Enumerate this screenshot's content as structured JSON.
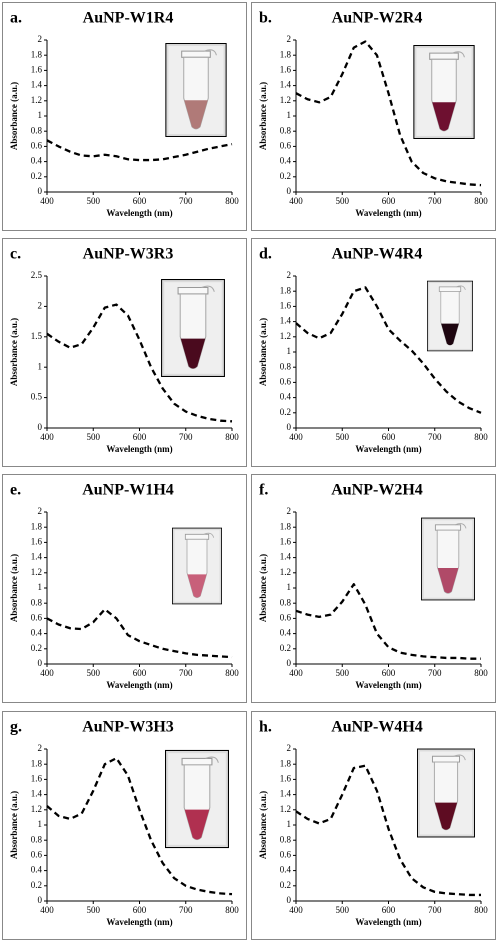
{
  "chart_data": [
    {
      "type": "line",
      "label": "a.",
      "title": "AuNP-W1R4",
      "x_label": "Wavelength (nm)",
      "y_label": "Absorbance (a.u.)",
      "x": [
        400,
        425,
        450,
        475,
        500,
        525,
        550,
        575,
        600,
        625,
        650,
        675,
        700,
        725,
        750,
        775,
        800
      ],
      "series": [
        {
          "color": "#000000",
          "values": [
            0.68,
            0.6,
            0.53,
            0.48,
            0.47,
            0.49,
            0.47,
            0.43,
            0.42,
            0.42,
            0.43,
            0.46,
            0.49,
            0.53,
            0.57,
            0.6,
            0.63
          ]
        }
      ],
      "xlim": [
        400,
        800
      ],
      "xticks": [
        400,
        500,
        600,
        700,
        800
      ],
      "ylim": [
        0,
        2
      ],
      "yticks": [
        0,
        0.2,
        0.4,
        0.6,
        0.8,
        1,
        1.2,
        1.4,
        1.6,
        1.8,
        2
      ]
    },
    {
      "type": "line",
      "label": "b.",
      "title": "AuNP-W2R4",
      "x_label": "Wavelength (nm)",
      "y_label": "Absorbance (a.u.)",
      "x": [
        400,
        425,
        450,
        475,
        500,
        525,
        550,
        575,
        600,
        625,
        650,
        675,
        700,
        725,
        750,
        775,
        800
      ],
      "series": [
        {
          "color": "#000000",
          "values": [
            1.3,
            1.22,
            1.18,
            1.25,
            1.55,
            1.9,
            1.98,
            1.8,
            1.3,
            0.75,
            0.4,
            0.25,
            0.18,
            0.14,
            0.12,
            0.1,
            0.09
          ]
        }
      ],
      "xlim": [
        400,
        800
      ],
      "xticks": [
        400,
        500,
        600,
        700,
        800
      ],
      "ylim": [
        0,
        2
      ],
      "yticks": [
        0,
        0.2,
        0.4,
        0.6,
        0.8,
        1,
        1.2,
        1.4,
        1.6,
        1.8,
        2
      ]
    },
    {
      "type": "line",
      "label": "c.",
      "title": "AuNP-W3R3",
      "x_label": "Wavelength (nm)",
      "y_label": "Absorbance (a.u.)",
      "x": [
        400,
        425,
        450,
        475,
        500,
        525,
        550,
        575,
        600,
        625,
        650,
        675,
        700,
        725,
        750,
        775,
        800
      ],
      "series": [
        {
          "color": "#000000",
          "values": [
            1.55,
            1.42,
            1.32,
            1.38,
            1.65,
            1.98,
            2.03,
            1.85,
            1.45,
            1.0,
            0.65,
            0.4,
            0.27,
            0.2,
            0.15,
            0.12,
            0.11
          ]
        }
      ],
      "xlim": [
        400,
        800
      ],
      "xticks": [
        400,
        500,
        600,
        700,
        800
      ],
      "ylim": [
        0,
        2.5
      ],
      "yticks": [
        0,
        0.5,
        1,
        1.5,
        2,
        2.5
      ]
    },
    {
      "type": "line",
      "label": "d.",
      "title": "AuNP-W4R4",
      "x_label": "Wavelength (nm)",
      "y_label": "Absorbance (a.u.)",
      "x": [
        400,
        425,
        450,
        475,
        500,
        525,
        550,
        575,
        600,
        625,
        650,
        675,
        700,
        725,
        750,
        775,
        800
      ],
      "series": [
        {
          "color": "#000000",
          "values": [
            1.38,
            1.25,
            1.18,
            1.25,
            1.5,
            1.8,
            1.85,
            1.6,
            1.3,
            1.15,
            1.02,
            0.85,
            0.65,
            0.48,
            0.35,
            0.26,
            0.2
          ]
        }
      ],
      "xlim": [
        400,
        800
      ],
      "xticks": [
        400,
        500,
        600,
        700,
        800
      ],
      "ylim": [
        0,
        2
      ],
      "yticks": [
        0,
        0.2,
        0.4,
        0.6,
        0.8,
        1,
        1.2,
        1.4,
        1.6,
        1.8,
        2
      ]
    },
    {
      "type": "line",
      "label": "e.",
      "title": "AuNP-W1H4",
      "x_label": "Wavelength (nm)",
      "y_label": "Absorbance (a.u.)",
      "x": [
        400,
        425,
        450,
        475,
        500,
        525,
        550,
        575,
        600,
        625,
        650,
        675,
        700,
        725,
        750,
        775,
        800
      ],
      "series": [
        {
          "color": "#000000",
          "values": [
            0.6,
            0.52,
            0.47,
            0.46,
            0.55,
            0.72,
            0.6,
            0.38,
            0.3,
            0.25,
            0.2,
            0.17,
            0.14,
            0.12,
            0.11,
            0.1,
            0.09
          ]
        }
      ],
      "xlim": [
        400,
        800
      ],
      "xticks": [
        400,
        500,
        600,
        700,
        800
      ],
      "ylim": [
        0,
        2
      ],
      "yticks": [
        0,
        0.2,
        0.4,
        0.6,
        0.8,
        1,
        1.2,
        1.4,
        1.6,
        1.8,
        2
      ]
    },
    {
      "type": "line",
      "label": "f.",
      "title": "AuNP-W2H4",
      "x_label": "Wavelength (nm)",
      "y_label": "Absorbance (a.u.)",
      "x": [
        400,
        425,
        450,
        475,
        500,
        525,
        550,
        575,
        600,
        625,
        650,
        675,
        700,
        725,
        750,
        775,
        800
      ],
      "series": [
        {
          "color": "#000000",
          "values": [
            0.7,
            0.65,
            0.62,
            0.65,
            0.82,
            1.05,
            0.78,
            0.4,
            0.22,
            0.15,
            0.12,
            0.1,
            0.09,
            0.08,
            0.08,
            0.07,
            0.07
          ]
        }
      ],
      "xlim": [
        400,
        800
      ],
      "xticks": [
        400,
        500,
        600,
        700,
        800
      ],
      "ylim": [
        0,
        2
      ],
      "yticks": [
        0,
        0.2,
        0.4,
        0.6,
        0.8,
        1,
        1.2,
        1.4,
        1.6,
        1.8,
        2
      ]
    },
    {
      "type": "line",
      "label": "g.",
      "title": "AuNP-W3H3",
      "x_label": "Wavelength (nm)",
      "y_label": "Absorbance (a.u.)",
      "x": [
        400,
        425,
        450,
        475,
        500,
        525,
        550,
        575,
        600,
        625,
        650,
        675,
        700,
        725,
        750,
        775,
        800
      ],
      "series": [
        {
          "color": "#000000",
          "values": [
            1.25,
            1.12,
            1.08,
            1.15,
            1.45,
            1.8,
            1.88,
            1.65,
            1.2,
            0.8,
            0.5,
            0.3,
            0.2,
            0.15,
            0.12,
            0.1,
            0.09
          ]
        }
      ],
      "xlim": [
        400,
        800
      ],
      "xticks": [
        400,
        500,
        600,
        700,
        800
      ],
      "ylim": [
        0,
        2
      ],
      "yticks": [
        0,
        0.2,
        0.4,
        0.6,
        0.8,
        1,
        1.2,
        1.4,
        1.6,
        1.8,
        2
      ]
    },
    {
      "type": "line",
      "label": "h.",
      "title": "AuNP-W4H4",
      "x_label": "Wavelength (nm)",
      "y_label": "Absorbance (a.u.)",
      "x": [
        400,
        425,
        450,
        475,
        500,
        525,
        550,
        575,
        600,
        625,
        650,
        675,
        700,
        725,
        750,
        775,
        800
      ],
      "series": [
        {
          "color": "#000000",
          "values": [
            1.18,
            1.08,
            1.02,
            1.08,
            1.4,
            1.75,
            1.78,
            1.45,
            0.95,
            0.55,
            0.3,
            0.18,
            0.12,
            0.1,
            0.09,
            0.08,
            0.08
          ]
        }
      ],
      "xlim": [
        400,
        800
      ],
      "xticks": [
        400,
        500,
        600,
        700,
        800
      ],
      "ylim": [
        0,
        2
      ],
      "yticks": [
        0,
        0.2,
        0.4,
        0.6,
        0.8,
        1,
        1.2,
        1.4,
        1.6,
        1.8,
        2
      ]
    }
  ]
}
